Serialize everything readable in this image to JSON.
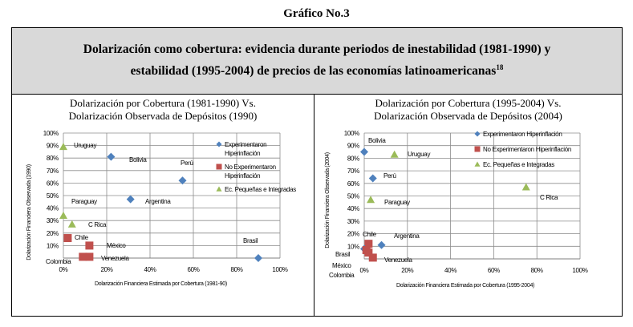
{
  "figure_title": "Gráfico No.3",
  "header": {
    "line1": "Dolarización como cobertura: evidencia durante periodos de inestabilidad (1981-1990) y",
    "line2": "estabilidad (1995-2004) de precios de las economías latinoamericanas",
    "footnote": "18"
  },
  "colors": {
    "diamond": "#4f81bd",
    "square": "#c0504d",
    "triangle": "#9bbb59"
  },
  "chart_data": [
    {
      "type": "scatter",
      "title_line1": "Dolarización por Cobertura (1981-1990) Vs.",
      "title_line2": "Dolarización Observada  de Depósitos (1990)",
      "xlabel": "Dolarización Financiera Estimada por Cobertura (1981-90)",
      "ylabel": "Dolarización Financiera Observada (1990)",
      "xlim": [
        0,
        100
      ],
      "ylim": [
        0,
        100
      ],
      "xticks": [
        "0%",
        "20%",
        "40%",
        "60%",
        "80%",
        "100%"
      ],
      "yticks": [
        "10%",
        "20%",
        "30%",
        "40%",
        "50%",
        "60%",
        "70%",
        "80%",
        "90%",
        "100%"
      ],
      "legend": [
        "Experimentaron Hiperinflación",
        "No Experimentaron Hiperinflación",
        "Ec. Pequeñas e Integradas"
      ],
      "legend_wrapped": [
        [
          "Experimentaron",
          "Hiperinflación"
        ],
        [
          "No Experimentaron",
          "Hiperinflación"
        ],
        [
          "Ec. Pequeñas e Integradas"
        ]
      ],
      "points": [
        {
          "label": "Uruguay",
          "x": 0,
          "y": 89,
          "series": 2
        },
        {
          "label": "Bolivia",
          "x": 22,
          "y": 81,
          "series": 0
        },
        {
          "label": "Perú",
          "x": 55,
          "y": 62,
          "series": 0
        },
        {
          "label": "Argentina",
          "x": 31,
          "y": 47,
          "series": 0
        },
        {
          "label": "Paraguay",
          "x": 0,
          "y": 34,
          "series": 2
        },
        {
          "label": "C Rica",
          "x": 4,
          "y": 27,
          "series": 2
        },
        {
          "label": "Chile",
          "x": 2,
          "y": 16,
          "series": 1
        },
        {
          "label": "México",
          "x": 12,
          "y": 10,
          "series": 1
        },
        {
          "label": "Venezuela",
          "x": 12,
          "y": 1,
          "series": 1
        },
        {
          "label": "Colombia",
          "x": 9,
          "y": 1,
          "series": 1
        },
        {
          "label": "Brasil",
          "x": 90,
          "y": 0,
          "series": 0
        }
      ]
    },
    {
      "type": "scatter",
      "title_line1": "Dolarización por Cobertura (1995-2004) Vs.",
      "title_line2": "Dolarización Observada  de Depósitos (2004)",
      "xlabel": "Dolarización Financiera Estimada por Cobertura (1995-2004)",
      "ylabel": "Dolarización Financiera Observada (2004)",
      "xlim": [
        0,
        100
      ],
      "ylim": [
        0,
        100
      ],
      "xticks": [
        "0%",
        "20%",
        "40%",
        "60%",
        "80%",
        "100%"
      ],
      "yticks": [
        "10%",
        "20%",
        "30%",
        "40%",
        "50%",
        "60%",
        "70%",
        "80%",
        "90%",
        "100%"
      ],
      "legend": [
        "Experimentaron Hiperinflación",
        "No Experimentaron Hiperinflación",
        "Ec. Pequeñas e Integradas"
      ],
      "points": [
        {
          "label": "Bolivia",
          "x": 0,
          "y": 85,
          "series": 0
        },
        {
          "label": "Uruguay",
          "x": 14,
          "y": 83,
          "series": 2
        },
        {
          "label": "Perú",
          "x": 4,
          "y": 64,
          "series": 0
        },
        {
          "label": "Paraguay",
          "x": 3,
          "y": 47,
          "series": 2
        },
        {
          "label": "C Rica",
          "x": 75,
          "y": 57,
          "series": 2
        },
        {
          "label": "Chile",
          "x": 2,
          "y": 12,
          "series": 1
        },
        {
          "label": "Argentina",
          "x": 8,
          "y": 11,
          "series": 0
        },
        {
          "label": "Brasil",
          "x": 0,
          "y": 8,
          "series": 0
        },
        {
          "label": "Venezuela",
          "x": 4,
          "y": 1,
          "series": 1
        },
        {
          "label": "México",
          "x": 1,
          "y": 7,
          "series": 1
        },
        {
          "label": "Colombia",
          "x": 2,
          "y": 5,
          "series": 1
        }
      ]
    }
  ]
}
